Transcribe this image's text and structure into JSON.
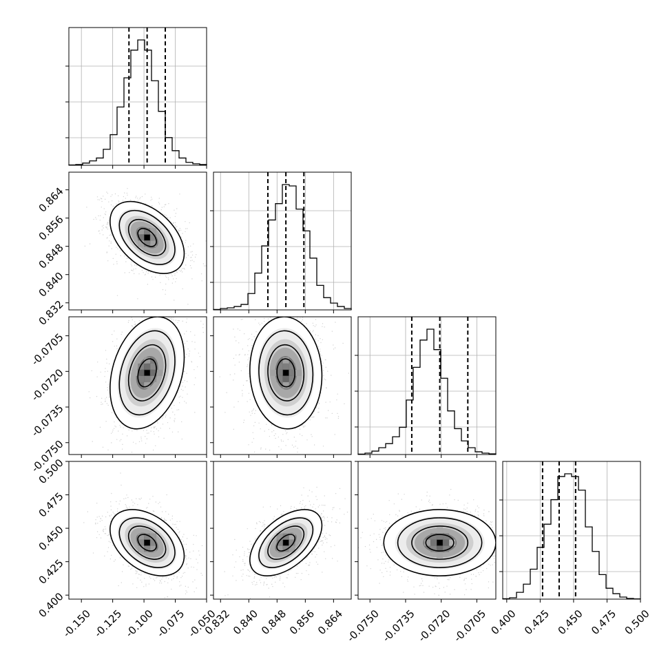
{
  "chart_data": {
    "type": "corner",
    "parameters": 4,
    "grid": true,
    "xaxis_ticks": [
      {
        "labels": [
          "-0.150",
          "-0.125",
          "-0.100",
          "-0.075",
          "-0.050"
        ],
        "values": [
          -0.15,
          -0.125,
          -0.1,
          -0.075,
          -0.05
        ],
        "range": [
          -0.16,
          -0.05
        ]
      },
      {
        "labels": [
          "0.832",
          "0.840",
          "0.848",
          "0.856",
          "0.864"
        ],
        "values": [
          0.832,
          0.84,
          0.848,
          0.856,
          0.864
        ],
        "range": [
          0.83,
          0.869
        ]
      },
      {
        "labels": [
          "-0.0750",
          "-0.0735",
          "-0.0720",
          "-0.0705"
        ],
        "values": [
          -0.075,
          -0.0735,
          -0.072,
          -0.0705
        ],
        "range": [
          -0.0755,
          -0.0697
        ]
      },
      {
        "labels": [
          "0.400",
          "0.425",
          "0.450",
          "0.475",
          "0.500"
        ],
        "values": [
          0.4,
          0.425,
          0.45,
          0.475,
          0.5
        ],
        "range": [
          0.397,
          0.5
        ]
      }
    ],
    "yaxis_ticks": [
      null,
      {
        "labels": [
          "0.832",
          "0.840",
          "0.848",
          "0.856",
          "0.864"
        ],
        "values": [
          0.832,
          0.84,
          0.848,
          0.856,
          0.864
        ]
      },
      {
        "labels": [
          "-0.0750",
          "-0.0735",
          "-0.0720",
          "-0.0705"
        ],
        "values": [
          -0.075,
          -0.0735,
          -0.072,
          -0.0705
        ]
      },
      {
        "labels": [
          "0.400",
          "0.425",
          "0.450",
          "0.475",
          "0.500"
        ],
        "values": [
          0.4,
          0.425,
          0.45,
          0.475,
          0.5
        ]
      }
    ],
    "marginals": [
      {
        "parameter": 0,
        "bin_edges_range": [
          -0.16,
          -0.05
        ],
        "counts": [
          0.2,
          0.5,
          1.5,
          3,
          5,
          11,
          21,
          40,
          60,
          79,
          86,
          79,
          58,
          37,
          19,
          10,
          5,
          2,
          1,
          0.5
        ],
        "quantiles": [
          -0.112,
          -0.0975,
          -0.083
        ]
      },
      {
        "parameter": 1,
        "bin_edges_range": [
          0.83,
          0.869
        ],
        "counts": [
          0.3,
          1,
          1.5,
          2.5,
          4,
          12,
          27,
          47,
          66,
          78,
          92,
          91,
          74,
          58,
          38,
          18,
          9,
          5,
          2.5,
          1
        ],
        "quantiles": [
          0.8454,
          0.8505,
          0.8556
        ]
      },
      {
        "parameter": 2,
        "bin_edges_range": [
          -0.0755,
          -0.0697
        ],
        "counts": [
          0.3,
          1,
          2.5,
          5,
          8,
          13,
          20,
          40,
          64,
          84,
          92,
          77,
          56,
          32,
          19,
          10,
          5,
          2,
          1,
          0.5
        ],
        "quantiles": [
          -0.07324,
          -0.07206,
          -0.07088
        ]
      },
      {
        "parameter": 3,
        "bin_edges_range": [
          0.397,
          0.5
        ],
        "counts": [
          0.3,
          1,
          5,
          11,
          22,
          38,
          55,
          73,
          90,
          92,
          90,
          80,
          53,
          35,
          18,
          8,
          4,
          1.5,
          0.5,
          0.2
        ],
        "quantiles": [
          0.4268,
          0.4392,
          0.4515
        ]
      }
    ],
    "pairs": [
      {
        "x_param": 0,
        "y_param": 1,
        "mean": [
          -0.0975,
          0.8505
        ],
        "sd": [
          0.0148,
          0.0051
        ],
        "corr": -0.45
      },
      {
        "x_param": 0,
        "y_param": 2,
        "mean": [
          -0.0975,
          -0.07206
        ],
        "sd": [
          0.0148,
          0.00118
        ],
        "corr": 0.28
      },
      {
        "x_param": 1,
        "y_param": 2,
        "mean": [
          0.8505,
          -0.07206
        ],
        "sd": [
          0.0051,
          0.00118
        ],
        "corr": -0.05
      },
      {
        "x_param": 0,
        "y_param": 3,
        "mean": [
          -0.0975,
          0.4392
        ],
        "sd": [
          0.0148,
          0.0124
        ],
        "corr": -0.4
      },
      {
        "x_param": 1,
        "y_param": 3,
        "mean": [
          0.8505,
          0.4392
        ],
        "sd": [
          0.0051,
          0.0124
        ],
        "corr": 0.52
      },
      {
        "x_param": 2,
        "y_param": 3,
        "mean": [
          -0.07206,
          0.4392
        ],
        "sd": [
          0.00118,
          0.0124
        ],
        "corr": 0.0
      }
    ],
    "contour_levels_sigma": [
      0.5,
      1.0,
      1.5,
      2.0
    ],
    "colors": {
      "hist": "#000000",
      "density": "#000000",
      "grid": "#b0b0b0",
      "scatter": "#9a9a9a",
      "quantile_line": "#000000"
    }
  }
}
